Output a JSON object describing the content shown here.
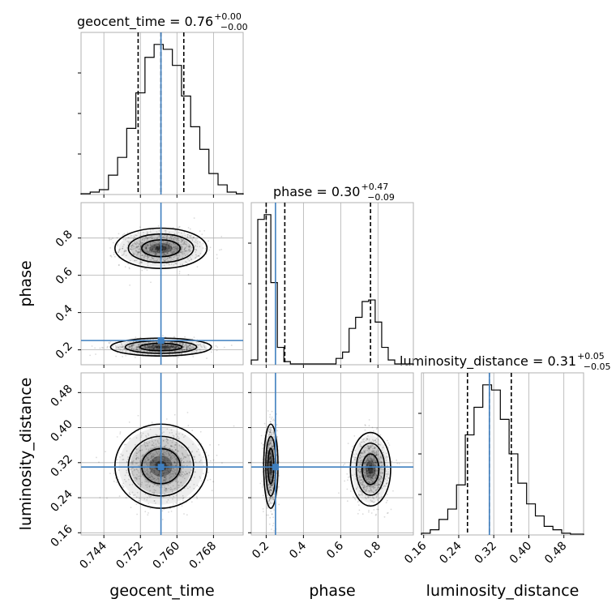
{
  "chart_data": {
    "type": "corner",
    "truth_color": "#3f7fbf",
    "parameters": [
      {
        "name": "geocent_time",
        "label": "geocent_time",
        "title_prefix": "geocent_time = 0.76",
        "err_plus": "+0.00",
        "err_minus": "−0.00",
        "range": [
          0.739,
          0.7745
        ],
        "ticks": [
          0.744,
          0.752,
          0.76,
          0.768
        ],
        "tick_labels": [
          "0.744",
          "0.752",
          "0.760",
          "0.768"
        ],
        "truth": 0.7565,
        "quantiles": [
          0.7515,
          0.7565,
          0.7615
        ],
        "hist_bins": [
          0.739,
          0.741,
          0.743,
          0.745,
          0.747,
          0.749,
          0.751,
          0.753,
          0.755,
          0.757,
          0.759,
          0.761,
          0.763,
          0.765,
          0.767,
          0.769,
          0.771,
          0.773,
          0.7745
        ],
        "hist_counts": [
          0.5,
          1.5,
          3,
          12,
          23,
          41,
          63,
          85,
          93,
          90,
          80,
          61,
          42,
          28,
          13,
          6,
          1.5,
          0.5
        ]
      },
      {
        "name": "phase",
        "label": "phase",
        "title_prefix": "phase = 0.30",
        "err_plus": "+0.47",
        "err_minus": "−0.09",
        "range": [
          0.12,
          0.99
        ],
        "ticks": [
          0.2,
          0.4,
          0.6,
          0.8
        ],
        "tick_labels": [
          "0.2",
          "0.4",
          "0.6",
          "0.8"
        ],
        "truth": 0.25,
        "quantiles": [
          0.2,
          0.3,
          0.76
        ],
        "hist_bins": [
          0.12,
          0.155,
          0.19,
          0.225,
          0.26,
          0.295,
          0.33,
          0.365,
          0.4,
          0.435,
          0.47,
          0.505,
          0.54,
          0.575,
          0.61,
          0.645,
          0.68,
          0.715,
          0.75,
          0.785,
          0.82,
          0.855,
          0.89,
          0.925,
          0.96,
          0.99
        ],
        "hist_counts": [
          3,
          92,
          95,
          52,
          11,
          2,
          0.5,
          0.5,
          0.5,
          0.5,
          0.5,
          0.5,
          0.5,
          4,
          8,
          23,
          30,
          40,
          41,
          27,
          11,
          3,
          0.5,
          0.5,
          0.5
        ]
      },
      {
        "name": "luminosity_distance",
        "label": "luminosity_distance",
        "title_prefix": "luminosity_distance = 0.31",
        "err_plus": "+0.05",
        "err_minus": "−0.05",
        "range": [
          0.155,
          0.525
        ],
        "ticks": [
          0.16,
          0.24,
          0.32,
          0.4,
          0.48
        ],
        "tick_labels": [
          "0.16",
          "0.24",
          "0.32",
          "0.40",
          "0.48"
        ],
        "truth": 0.31,
        "quantiles": [
          0.26,
          0.31,
          0.36
        ],
        "hist_bins": [
          0.155,
          0.175,
          0.195,
          0.215,
          0.235,
          0.255,
          0.275,
          0.295,
          0.315,
          0.335,
          0.355,
          0.375,
          0.395,
          0.415,
          0.435,
          0.455,
          0.475,
          0.495,
          0.525
        ],
        "hist_counts": [
          1,
          3,
          9,
          15,
          29,
          58,
          74,
          87,
          84,
          67,
          47,
          30,
          18,
          11,
          5,
          3,
          1,
          0.5
        ]
      }
    ],
    "pairs": [
      {
        "x_param": "geocent_time",
        "y_param": "phase",
        "blobs": [
          {
            "cx": 0.7565,
            "cy": 0.745,
            "sx": 0.0042,
            "sy": 0.045
          },
          {
            "cx": 0.7565,
            "cy": 0.215,
            "sx": 0.0046,
            "sy": 0.02
          }
        ]
      },
      {
        "x_param": "geocent_time",
        "y_param": "luminosity_distance",
        "blobs": [
          {
            "cx": 0.7565,
            "cy": 0.312,
            "sx": 0.0042,
            "sy": 0.04
          }
        ]
      },
      {
        "x_param": "phase",
        "y_param": "luminosity_distance",
        "blobs": [
          {
            "cx": 0.225,
            "cy": 0.312,
            "sx": 0.016,
            "sy": 0.04
          },
          {
            "cx": 0.76,
            "cy": 0.305,
            "sx": 0.045,
            "sy": 0.035
          }
        ]
      }
    ]
  }
}
